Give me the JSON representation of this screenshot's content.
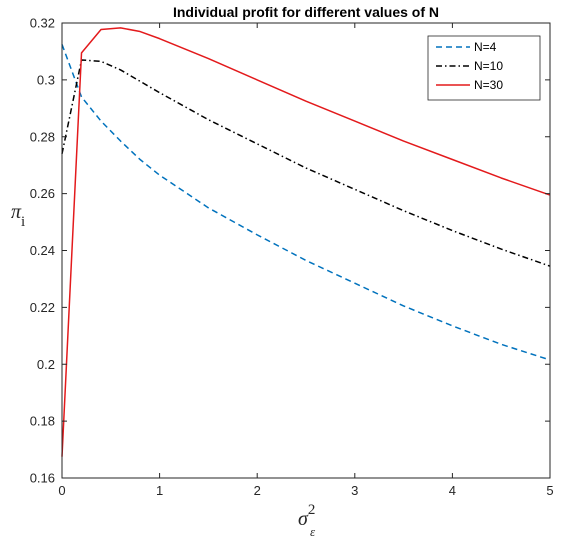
{
  "chart_data": {
    "type": "line",
    "title": "Individual profit for different values of N",
    "xlabel": {
      "base": "σ",
      "sup": "2",
      "sub": "ε"
    },
    "ylabel": {
      "base": "π",
      "sub": "i"
    },
    "xlim": [
      0,
      5
    ],
    "ylim": [
      0.16,
      0.32
    ],
    "xticks": [
      0,
      1,
      2,
      3,
      4,
      5
    ],
    "yticks": [
      0.16,
      0.18,
      0.2,
      0.22,
      0.24,
      0.26,
      0.28,
      0.3,
      0.32
    ],
    "ytick_labels": [
      "0.16",
      "0.18",
      "0.2",
      "0.22",
      "0.24",
      "0.26",
      "0.28",
      "0.3",
      "0.32"
    ],
    "grid": false,
    "legend_position": "top-right",
    "series": [
      {
        "name": "N=4",
        "color": "#0072BD",
        "dash": "dashed",
        "x": [
          0,
          0.2,
          0.4,
          0.6,
          0.8,
          1.0,
          1.5,
          2.0,
          2.5,
          3.0,
          3.5,
          4.0,
          4.5,
          5.0
        ],
        "y": [
          0.3125,
          0.294,
          0.2855,
          0.2785,
          0.272,
          0.2665,
          0.255,
          0.2455,
          0.2365,
          0.2285,
          0.2205,
          0.2135,
          0.207,
          0.2015
        ]
      },
      {
        "name": "N=10",
        "color": "#000000",
        "dash": "dashdot",
        "x": [
          0,
          0.2,
          0.4,
          0.6,
          0.8,
          1.0,
          1.5,
          2.0,
          2.5,
          3.0,
          3.5,
          4.0,
          4.5,
          5.0
        ],
        "y": [
          0.274,
          0.307,
          0.3065,
          0.3035,
          0.2995,
          0.2955,
          0.286,
          0.2775,
          0.269,
          0.2615,
          0.254,
          0.247,
          0.2405,
          0.2345
        ]
      },
      {
        "name": "N=30",
        "color": "#E31A1C",
        "dash": "solid",
        "x": [
          0,
          0.2,
          0.4,
          0.6,
          0.8,
          1.0,
          1.5,
          2.0,
          2.5,
          3.0,
          3.5,
          4.0,
          4.5,
          5.0
        ],
        "y": [
          0.1675,
          0.3095,
          0.3177,
          0.3183,
          0.317,
          0.3145,
          0.3075,
          0.3,
          0.2925,
          0.2855,
          0.2785,
          0.272,
          0.2655,
          0.2595
        ]
      }
    ]
  }
}
